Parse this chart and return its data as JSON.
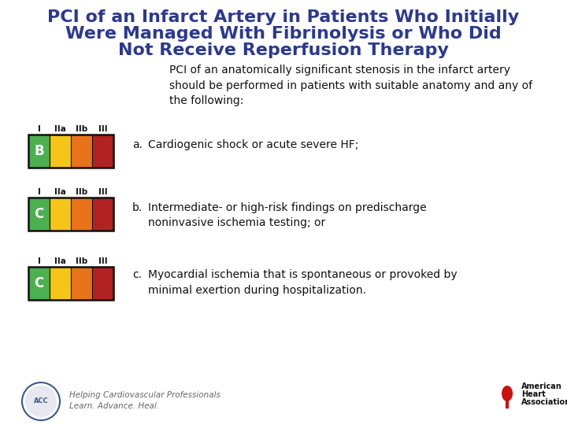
{
  "title_line1": "PCI of an Infarct Artery in Patients Who Initially",
  "title_line2": "Were Managed With Fibrinolysis or Who Did",
  "title_line3": "Not Receive Reperfusion Therapy",
  "title_color": "#2B3990",
  "background_color": "#FFFFFF",
  "intro_text": "PCI of an anatomically significant stenosis in the infarct artery\nshould be performed in patients with suitable anatomy and any of\nthe following:",
  "items": [
    {
      "label": "a.",
      "text": "Cardiogenic shock or acute severe HF;",
      "badge_letter": "B",
      "text_single": true
    },
    {
      "label": "b.",
      "text": "Intermediate- or high-risk findings on predischarge\nnoninvasive ischemia testing; or",
      "badge_letter": "C",
      "text_single": false
    },
    {
      "label": "c.",
      "text": "Myocardial ischemia that is spontaneous or provoked by\nminimal exertion during hospitalization.",
      "badge_letter": "C",
      "text_single": false
    }
  ],
  "bar_colors": [
    "#4CAF50",
    "#F5C518",
    "#E8731A",
    "#B22222"
  ],
  "bar_border_color": "#111111",
  "header_color": "#111111",
  "footer_text1": "Helping Cardiovascular Professionals",
  "footer_text2": "Learn. Advance. Heal.",
  "text_color": "#111111",
  "title_fontsize": 16,
  "body_fontsize": 10,
  "header_fontsize": 7.5,
  "badge_fontsize": 12
}
